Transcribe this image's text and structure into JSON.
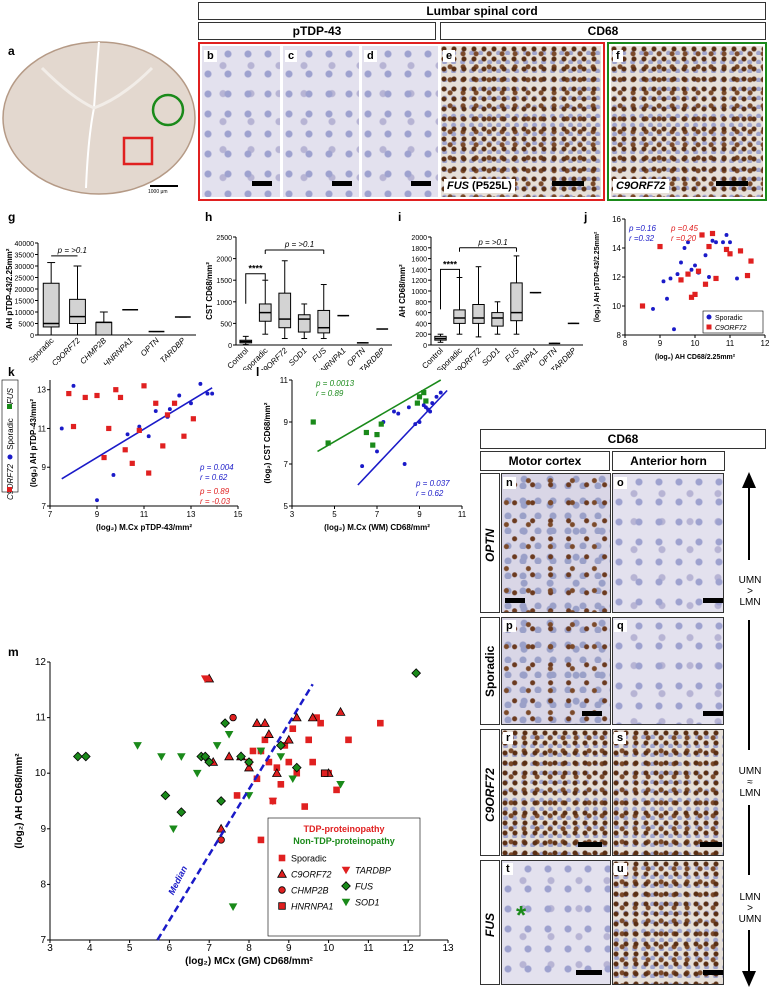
{
  "header": {
    "title": "Lumbar spinal cord",
    "ptdp": "pTDP-43",
    "cd68": "CD68"
  },
  "panel_labels": [
    "a",
    "b",
    "c",
    "d",
    "e",
    "f",
    "g",
    "h",
    "i",
    "j",
    "k",
    "l",
    "m",
    "n",
    "o",
    "p",
    "q",
    "r",
    "s",
    "t",
    "u"
  ],
  "panel_a": {
    "scale": "1000 μm"
  },
  "panel_e": {
    "label": "FUS",
    "suffix": " (P525L)"
  },
  "panel_f": {
    "label": "C9ORF72"
  },
  "panel_g": {
    "ylabel": "AH pTDP-43/2.25mm²",
    "yticks": [
      "0",
      "5000",
      "10000",
      "15000",
      "20000",
      "25000",
      "30000",
      "35000",
      "40000"
    ],
    "cats": [
      "Sporadic",
      "C9ORF72",
      "CHMP2B",
      "HNRNPA1",
      "OPTN",
      "TARDBP"
    ],
    "stat": "p = >0.1"
  },
  "panel_h": {
    "ylabel": "CST CD68/mm²",
    "yticks": [
      "0",
      "500",
      "1000",
      "1500",
      "2000",
      "2500"
    ],
    "cats": [
      "Control",
      "Sporadic",
      "C9ORF72",
      "SOD1",
      "FUS",
      "HNRNPA1",
      "OPTN",
      "TARDBP"
    ],
    "stat": "p = >0.1",
    "sig": "****"
  },
  "panel_i": {
    "ylabel": "AH CD68/mm²",
    "yticks": [
      "0",
      "200",
      "400",
      "600",
      "800",
      "1000",
      "1200",
      "1400",
      "1600",
      "1800",
      "2000"
    ],
    "cats": [
      "Control",
      "Sporadic",
      "C9ORF72",
      "SOD1",
      "FUS",
      "HNRNPA1",
      "OPTN",
      "TARDBP"
    ],
    "stat": "p = >0.1",
    "sig": "****"
  },
  "panel_j": {
    "ylabel": "(log₂) AH pTDP-43/2.25mm²",
    "xlabel": "(log₂) AH CD68/2.25mm²",
    "p_blue": "p =0.16",
    "r_blue": "r =0.32",
    "p_red": "p =0.45",
    "r_red": "r =0.20",
    "legend": [
      "Sporadic",
      "C9ORF72"
    ]
  },
  "panel_k": {
    "ylabel": "(log₂) AH pTDP-43/mm²",
    "xlabel": "(log₂) M.Cx pTDP-43/mm²",
    "p_blue": "p = 0.004",
    "r_blue": "r = 0.62",
    "p_red": "p = 0.89",
    "r_red": "r = -0.03",
    "legend": [
      "C9ORF72",
      "Sporadic",
      "FUS"
    ]
  },
  "panel_l": {
    "ylabel": "(log₂) CST CD68/mm²",
    "xlabel": "(log₂) M.Cx (WM) CD68/mm²",
    "p_green": "p = 0.0013",
    "r_green": "r = 0.89",
    "p_blue": "p = 0.037",
    "r_blue": "r = 0.62"
  },
  "panel_m": {
    "ylabel": "(log₂) AH CD68/mm²",
    "xlabel": "(log₂) MCx (GM) CD68/mm²",
    "median": "Median",
    "tdp_title": "TDP-proteinopathy",
    "non_tdp_title": "Non-TDP-proteinopathy",
    "legend": [
      "Sporadic",
      "C9ORF72",
      "CHMP2B",
      "HNRNPA1",
      "TARDBP",
      "FUS",
      "SOD1"
    ]
  },
  "right": {
    "title": "CD68",
    "col1": "Motor cortex",
    "col2": "Anterior horn",
    "rows": [
      "OPTN",
      "Sporadic",
      "C9ORF72",
      "FUS"
    ],
    "ratio_top": [
      "UMN",
      ">",
      "LMN"
    ],
    "ratio_mid": [
      "UMN",
      "≈",
      "LMN"
    ],
    "ratio_bot": [
      "LMN",
      ">",
      "UMN"
    ]
  },
  "chart_data": [
    {
      "type": "box",
      "title": "g",
      "ylabel": "AH pTDP-43/2.25mm²",
      "ylim": [
        0,
        40000
      ],
      "categories": [
        "Sporadic",
        "C9ORF72",
        "CHMP2B",
        "HNRNPA1",
        "OPTN",
        "TARDBP"
      ],
      "boxes": [
        {
          "min": 0,
          "q1": 3500,
          "median": 5000,
          "q3": 22500,
          "max": 31500
        },
        {
          "min": 0,
          "q1": 5000,
          "median": 8000,
          "q3": 15500,
          "max": 30000
        },
        {
          "min": 0,
          "q1": 0,
          "median": 5500,
          "q3": 5500,
          "max": 10000
        },
        {
          "min": 11000,
          "q1": 11000,
          "median": 11000,
          "q3": 11000,
          "max": 11000
        },
        {
          "min": 1500,
          "q1": 1500,
          "median": 1500,
          "q3": 1500,
          "max": 1500
        },
        {
          "min": 7800,
          "q1": 7800,
          "median": 7800,
          "q3": 7800,
          "max": 7800
        }
      ]
    },
    {
      "type": "box",
      "title": "h",
      "ylabel": "CST CD68/mm²",
      "ylim": [
        0,
        2500
      ],
      "categories": [
        "Control",
        "Sporadic",
        "C9ORF72",
        "SOD1",
        "FUS",
        "HNRNPA1",
        "OPTN",
        "TARDBP"
      ],
      "boxes": [
        {
          "min": 10,
          "q1": 50,
          "median": 80,
          "q3": 110,
          "max": 200
        },
        {
          "min": 250,
          "q1": 550,
          "median": 750,
          "q3": 950,
          "max": 1500
        },
        {
          "min": 150,
          "q1": 400,
          "median": 600,
          "q3": 1200,
          "max": 1950
        },
        {
          "min": 150,
          "q1": 300,
          "median": 600,
          "q3": 700,
          "max": 950
        },
        {
          "min": 150,
          "q1": 280,
          "median": 400,
          "q3": 800,
          "max": 1400
        },
        {
          "min": 680,
          "q1": 680,
          "median": 680,
          "q3": 680,
          "max": 680
        },
        {
          "min": 50,
          "q1": 50,
          "median": 50,
          "q3": 50,
          "max": 50
        },
        {
          "min": 370,
          "q1": 370,
          "median": 370,
          "q3": 370,
          "max": 370
        }
      ]
    },
    {
      "type": "box",
      "title": "i",
      "ylabel": "AH CD68/mm²",
      "ylim": [
        0,
        2000
      ],
      "categories": [
        "Control",
        "Sporadic",
        "C9ORF72",
        "SOD1",
        "FUS",
        "HNRNPA1",
        "OPTN",
        "TARDBP"
      ],
      "boxes": [
        {
          "min": 50,
          "q1": 90,
          "median": 120,
          "q3": 160,
          "max": 200
        },
        {
          "min": 200,
          "q1": 400,
          "median": 500,
          "q3": 650,
          "max": 1250
        },
        {
          "min": 150,
          "q1": 400,
          "median": 500,
          "q3": 750,
          "max": 1450
        },
        {
          "min": 200,
          "q1": 350,
          "median": 500,
          "q3": 600,
          "max": 800
        },
        {
          "min": 200,
          "q1": 450,
          "median": 600,
          "q3": 1150,
          "max": 1650
        },
        {
          "min": 970,
          "q1": 970,
          "median": 970,
          "q3": 970,
          "max": 970
        },
        {
          "min": 30,
          "q1": 30,
          "median": 30,
          "q3": 30,
          "max": 30
        },
        {
          "min": 400,
          "q1": 400,
          "median": 400,
          "q3": 400,
          "max": 400
        }
      ]
    },
    {
      "type": "scatter",
      "title": "j",
      "xlabel": "(log₂) AH CD68/2.25mm²",
      "ylabel": "(log₂) AH pTDP-43/2.25mm²",
      "xlim": [
        8,
        12
      ],
      "ylim": [
        8,
        16
      ],
      "series": [
        {
          "name": "Sporadic",
          "color": "#1a1ac8",
          "x": [
            8.8,
            9.1,
            9.3,
            9.4,
            9.5,
            9.6,
            9.7,
            9.8,
            10.0,
            10.1,
            10.2,
            10.3,
            10.5,
            10.6,
            10.8,
            10.9,
            11.0,
            11.2,
            9.9,
            10.4,
            9.2
          ],
          "y": [
            9.8,
            11.7,
            11.9,
            8.4,
            12.2,
            13.0,
            14.0,
            14.4,
            12.8,
            12.3,
            14.9,
            13.5,
            14.5,
            14.4,
            14.4,
            14.9,
            14.4,
            11.9,
            12.5,
            12.0,
            10.5
          ]
        },
        {
          "name": "C9ORF72",
          "color": "#e02020",
          "x": [
            8.5,
            9.0,
            9.6,
            9.8,
            10.0,
            10.1,
            10.2,
            10.3,
            10.5,
            10.6,
            10.9,
            11.0,
            11.3,
            11.5,
            11.6,
            10.4,
            9.9
          ],
          "y": [
            10.0,
            14.1,
            11.8,
            12.2,
            10.8,
            12.4,
            14.9,
            11.5,
            15.0,
            11.9,
            13.9,
            13.6,
            13.8,
            12.1,
            13.1,
            14.1,
            10.6
          ]
        }
      ]
    },
    {
      "type": "scatter",
      "title": "k",
      "xlabel": "(log₂) M.Cx pTDP-43/mm²",
      "ylabel": "(log₂) AH pTDP-43/mm²",
      "xlim": [
        7,
        15
      ],
      "ylim": [
        7,
        13.5
      ],
      "series": [
        {
          "name": "Sporadic",
          "color": "#1a1ac8",
          "x": [
            7.5,
            8.0,
            9.0,
            9.7,
            10.3,
            10.8,
            11.5,
            12.0,
            12.5,
            13.0,
            13.4,
            13.7,
            13.9,
            12.1,
            11.2
          ],
          "y": [
            11.0,
            13.2,
            7.3,
            8.6,
            10.7,
            11.1,
            11.9,
            11.6,
            12.7,
            12.3,
            13.3,
            12.8,
            12.8,
            12.0,
            10.6
          ],
          "fit": [
            [
              7.5,
              8.4
            ],
            [
              13.9,
              13.1
            ]
          ]
        },
        {
          "name": "C9ORF72",
          "color": "#e02020",
          "x": [
            7.8,
            8.0,
            8.5,
            9.0,
            9.5,
            9.8,
            10.0,
            10.2,
            10.5,
            11.0,
            11.2,
            11.5,
            11.8,
            12.0,
            12.3,
            12.7,
            13.1,
            9.3,
            10.8
          ],
          "y": [
            12.8,
            11.1,
            12.6,
            12.7,
            11.0,
            13.0,
            12.6,
            9.9,
            9.2,
            13.2,
            8.7,
            12.3,
            10.1,
            11.7,
            12.3,
            10.6,
            11.5,
            9.5,
            10.9
          ]
        }
      ]
    },
    {
      "type": "scatter",
      "title": "l",
      "xlabel": "(log₂) M.Cx (WM) CD68/mm²",
      "ylabel": "(log₂) CST CD68/mm²",
      "xlim": [
        3,
        11
      ],
      "ylim": [
        5,
        11
      ],
      "series": [
        {
          "name": "Sporadic",
          "color": "#1a1ac8",
          "x": [
            6.3,
            7.0,
            7.3,
            7.8,
            8.0,
            8.3,
            8.8,
            9.0,
            9.2,
            9.3,
            9.4,
            9.6,
            9.8,
            10.0,
            9.5,
            8.5
          ],
          "y": [
            6.9,
            7.6,
            9.0,
            9.5,
            9.4,
            7.0,
            8.9,
            9.0,
            9.8,
            9.7,
            9.6,
            9.9,
            10.2,
            10.4,
            9.5,
            9.7
          ],
          "fit": [
            [
              6.1,
              6.0
            ],
            [
              10.3,
              10.5
            ]
          ]
        },
        {
          "name": "FUS",
          "color": "#1a8a1a",
          "x": [
            4.0,
            4.7,
            6.5,
            6.8,
            7.0,
            7.2,
            8.9,
            9.0,
            9.2,
            9.3
          ],
          "y": [
            9.0,
            8.0,
            8.5,
            7.9,
            8.4,
            8.9,
            9.9,
            10.2,
            10.4,
            10.0
          ],
          "fit": [
            [
              4.2,
              7.6
            ],
            [
              10.0,
              11.0
            ]
          ]
        }
      ]
    },
    {
      "type": "scatter",
      "title": "m",
      "xlabel": "(log₂) MCx (GM) CD68/mm²",
      "ylabel": "(log₂) AH CD68/mm²",
      "xlim": [
        3,
        13
      ],
      "ylim": [
        7,
        12
      ],
      "series": [
        {
          "name": "Sporadic",
          "marker": "square",
          "color": "#e02020",
          "x": [
            7.7,
            8.0,
            8.1,
            8.2,
            8.3,
            8.4,
            8.5,
            8.6,
            8.7,
            8.8,
            9.0,
            9.2,
            9.4,
            9.5,
            9.6,
            9.8,
            10.0,
            10.2,
            10.5,
            11.3,
            8.3,
            8.9,
            9.1,
            9.7
          ],
          "y": [
            9.6,
            10.2,
            10.4,
            9.9,
            10.4,
            10.6,
            10.2,
            9.5,
            10.1,
            9.8,
            10.2,
            10.0,
            9.4,
            10.6,
            10.2,
            10.9,
            10.0,
            9.7,
            10.6,
            10.9,
            8.8,
            10.5,
            10.8,
            11.0
          ]
        },
        {
          "name": "C9ORF72",
          "marker": "triangle",
          "color": "#e02020",
          "x": [
            7.0,
            7.3,
            7.5,
            7.8,
            8.0,
            8.2,
            8.4,
            8.7,
            9.0,
            9.2,
            9.6,
            10.0,
            10.3,
            7.1,
            8.5
          ],
          "y": [
            11.7,
            9.0,
            10.3,
            10.3,
            10.1,
            10.9,
            10.9,
            10.0,
            10.6,
            11.0,
            11.0,
            10.0,
            11.1,
            10.2,
            10.7
          ]
        },
        {
          "name": "CHMP2B",
          "marker": "circle",
          "color": "#e02020",
          "x": [
            7.3,
            7.6
          ],
          "y": [
            8.8,
            11.0
          ]
        },
        {
          "name": "HNRNPA1",
          "marker": "square-outlined",
          "color": "#e02020",
          "x": [
            9.9
          ],
          "y": [
            10.0
          ]
        },
        {
          "name": "TARDBP",
          "marker": "triangle-down",
          "color": "#e02020",
          "x": [
            6.9,
            8.6
          ],
          "y": [
            11.7,
            9.5
          ]
        },
        {
          "name": "FUS",
          "marker": "diamond",
          "color": "#1a8a1a",
          "x": [
            3.7,
            3.9,
            5.9,
            6.3,
            6.8,
            7.0,
            7.3,
            7.8,
            8.0,
            8.8,
            9.2,
            12.2,
            6.9,
            7.4
          ],
          "y": [
            10.3,
            10.3,
            9.6,
            9.3,
            10.3,
            10.2,
            9.5,
            10.3,
            10.2,
            10.5,
            10.1,
            11.8,
            10.3,
            10.9
          ]
        },
        {
          "name": "SOD1",
          "marker": "triangle-down",
          "color": "#1a8a1a",
          "x": [
            5.2,
            5.8,
            6.3,
            6.7,
            7.2,
            7.6,
            8.0,
            8.3,
            8.8,
            9.1,
            10.3,
            6.1,
            7.5
          ],
          "y": [
            10.5,
            10.3,
            10.3,
            10.0,
            10.5,
            7.6,
            9.6,
            10.4,
            10.3,
            9.9,
            9.8,
            9.0,
            10.7
          ]
        }
      ],
      "median_line": [
        [
          5.7,
          7.0
        ],
        [
          9.6,
          11.6
        ]
      ]
    }
  ]
}
